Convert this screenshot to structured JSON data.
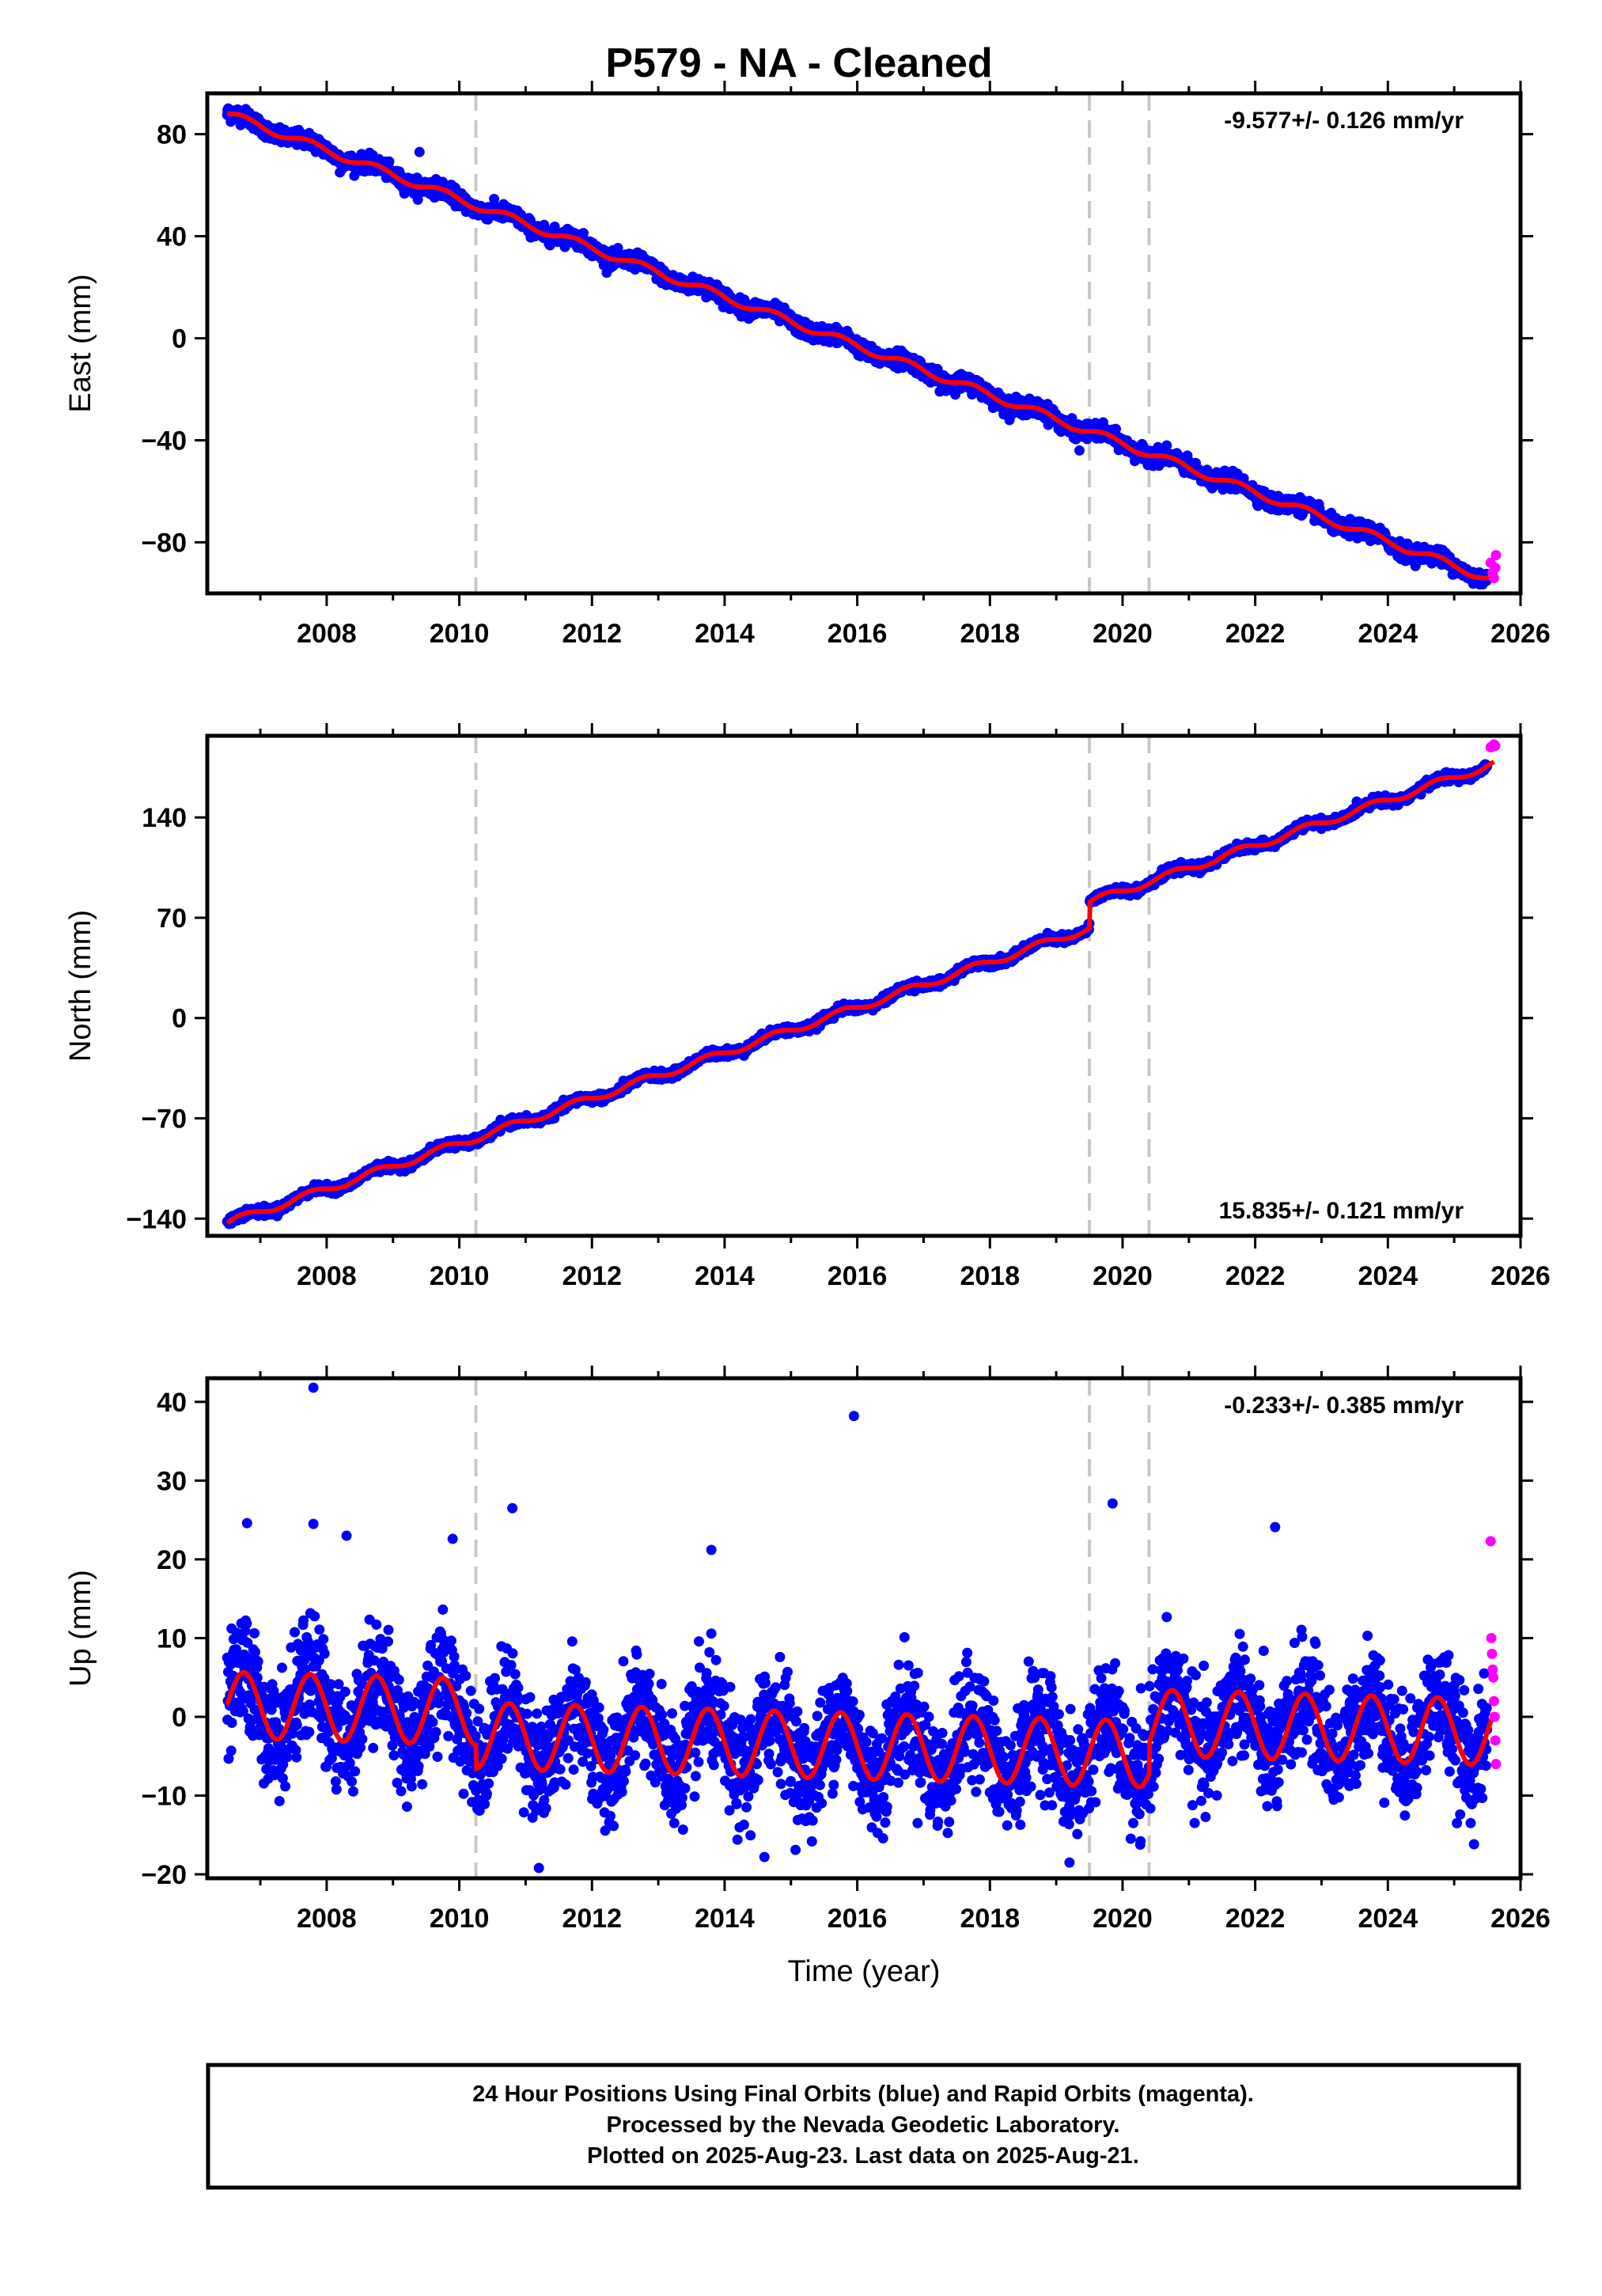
{
  "title": "P579  - NA - Cleaned",
  "colors": {
    "final_orbits": "#0000ff",
    "rapid_orbits": "#ff00ff",
    "model": "#ff0000",
    "event_lines": "#c8c8c8"
  },
  "footer": {
    "line1": "24 Hour Positions Using Final Orbits (blue) and Rapid Orbits (magenta).",
    "line2": "Processed by the Nevada Geodetic Laboratory.",
    "line3": "Plotted on 2025-Aug-23. Last data on 2025-Aug-21."
  },
  "chart_data": [
    {
      "type": "scatter",
      "ylabel": "East (mm)",
      "xlabel": "",
      "xlim": [
        2006.2,
        2026.0
      ],
      "ylim": [
        -100,
        96
      ],
      "xticks": [
        2008,
        2010,
        2012,
        2014,
        2016,
        2018,
        2020,
        2022,
        2024,
        2026
      ],
      "yticks": [
        80,
        40,
        0,
        -40,
        -80
      ],
      "rate_label": "-9.577+/- 0.126 mm/yr",
      "rate_position": "top-right",
      "event_lines_x": [
        2010.25,
        2019.5,
        2020.4
      ],
      "series": [
        {
          "role": "final_orbits_blue",
          "x_start": 2006.5,
          "x_end": 2025.5,
          "trend": {
            "start_value": 88,
            "rate_mm_per_yr": -9.577,
            "annual_amplitude": 1.5
          },
          "offsets": [],
          "noise_sd": 1.5,
          "outliers": [
            [
              2009.4,
              73
            ],
            [
              2019.35,
              -44
            ],
            [
              2008.2,
              65
            ]
          ]
        },
        {
          "role": "rapid_orbits_magenta",
          "x": [
            2025.55,
            2025.58,
            2025.6,
            2025.62,
            2025.63
          ],
          "y": [
            -88,
            -92,
            -94,
            -90,
            -85
          ]
        }
      ],
      "model_line": {
        "start_value": 88,
        "rate_mm_per_yr": -9.577,
        "annual_amplitude": 1.5,
        "x_start": 2006.5,
        "x_end": 2025.6
      }
    },
    {
      "type": "scatter",
      "ylabel": "North (mm)",
      "xlabel": "",
      "xlim": [
        2006.2,
        2026.0
      ],
      "ylim": [
        -152,
        197
      ],
      "xticks": [
        2008,
        2010,
        2012,
        2014,
        2016,
        2018,
        2020,
        2022,
        2024,
        2026
      ],
      "yticks": [
        140,
        70,
        0,
        -70,
        -140
      ],
      "rate_label": "15.835+/- 0.121 mm/yr",
      "rate_position": "bottom-right",
      "event_lines_x": [
        2010.25,
        2019.5,
        2020.4
      ],
      "series": [
        {
          "role": "final_orbits_blue",
          "x_start": 2006.5,
          "x_end": 2025.5,
          "trend": {
            "start_value": -143,
            "rate_mm_per_yr": 15.835,
            "annual_amplitude": 2.5
          },
          "offsets": [
            [
              2019.5,
              18
            ]
          ],
          "noise_sd": 1.4,
          "outliers": []
        },
        {
          "role": "rapid_orbits_magenta",
          "x": [
            2025.55,
            2025.58,
            2025.6,
            2025.62
          ],
          "y": [
            189,
            190,
            191,
            190
          ]
        }
      ],
      "model_line": {
        "start_value": -143,
        "rate_mm_per_yr": 15.835,
        "annual_amplitude": 2.5,
        "offsets": [
          [
            2019.5,
            18
          ]
        ],
        "x_start": 2006.5,
        "x_end": 2025.6
      }
    },
    {
      "type": "scatter",
      "ylabel": "Up (mm)",
      "xlabel": "Time (year)",
      "xlim": [
        2006.2,
        2026.0
      ],
      "ylim": [
        -20.5,
        43
      ],
      "xticks": [
        2008,
        2010,
        2012,
        2014,
        2016,
        2018,
        2020,
        2022,
        2024,
        2026
      ],
      "yticks": [
        40,
        30,
        20,
        10,
        0,
        -10,
        -20
      ],
      "rate_label": "-0.233+/- 0.385 mm/yr",
      "rate_position": "top-right",
      "event_lines_x": [
        2010.25,
        2019.5,
        2020.4
      ],
      "series": [
        {
          "role": "final_orbits_blue",
          "x_start": 2006.5,
          "x_end": 2025.5,
          "trend": {
            "start_value": 1.5,
            "rate_mm_per_yr": -0.233,
            "annual_amplitude": 4.2
          },
          "offsets": [
            [
              2010.25,
              -3
            ],
            [
              2020.4,
              4
            ]
          ],
          "noise_sd": 3.5,
          "outliers": [
            [
              2007.8,
              41.8
            ],
            [
              2015.95,
              38.2
            ],
            [
              2010.8,
              26.5
            ],
            [
              2006.8,
              24.6
            ],
            [
              2007.8,
              24.5
            ],
            [
              2008.3,
              23
            ],
            [
              2009.9,
              22.6
            ],
            [
              2019.85,
              27.1
            ],
            [
              2022.3,
              24.1
            ],
            [
              2013.8,
              21.2
            ],
            [
              2011.2,
              -19.2
            ],
            [
              2014.6,
              -17.8
            ],
            [
              2019.2,
              -18.5
            ]
          ]
        },
        {
          "role": "rapid_orbits_magenta",
          "x": [
            2025.55,
            2025.56,
            2025.57,
            2025.58,
            2025.59,
            2025.6,
            2025.61,
            2025.62,
            2025.63
          ],
          "y": [
            22.3,
            10,
            8,
            6,
            5,
            2,
            0,
            -3,
            -6
          ]
        }
      ],
      "model_line": {
        "start_value": 1.5,
        "rate_mm_per_yr": -0.233,
        "annual_amplitude": 4.2,
        "offsets": [
          [
            2010.25,
            -3
          ],
          [
            2020.4,
            4
          ]
        ],
        "x_start": 2006.5,
        "x_end": 2025.6
      }
    }
  ]
}
